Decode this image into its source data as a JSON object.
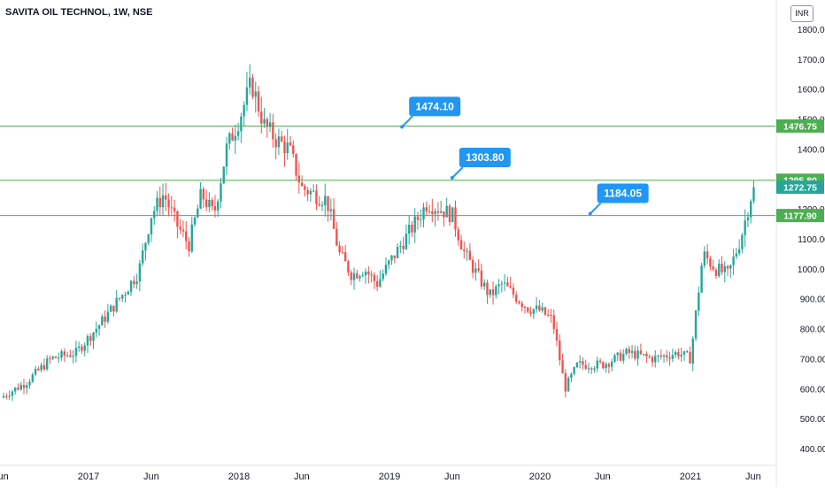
{
  "header": {
    "title": "SAVITA OIL TECHNOL, 1W, NSE",
    "currency": "INR"
  },
  "chart_data": {
    "type": "candlestick",
    "title": "SAVITA OIL TECHNOL, 1W, NSE",
    "y_axis": {
      "position": "right",
      "min": 350,
      "max": 1825,
      "ticks": [
        400,
        500,
        600,
        700,
        800,
        900,
        1000,
        1100,
        1200,
        1300,
        1400,
        1500,
        1600,
        1700,
        1800
      ],
      "tick_labels": [
        "400.00",
        "500.00",
        "600.00",
        "700.00",
        "800.00",
        "900.00",
        "1000.00",
        "1100.00",
        "1200.00",
        "1300.00",
        "1400.00",
        "1500.00",
        "1600.00",
        "1700.00",
        "1800.00"
      ]
    },
    "x_axis": {
      "start": "2016-06",
      "end": "2021-07",
      "ticks": [
        {
          "label": "Jun",
          "date": "2016-06"
        },
        {
          "label": "2017",
          "date": "2017-01"
        },
        {
          "label": "Jun",
          "date": "2017-06"
        },
        {
          "label": "2018",
          "date": "2018-01"
        },
        {
          "label": "Jun",
          "date": "2018-06"
        },
        {
          "label": "2019",
          "date": "2019-01"
        },
        {
          "label": "Jun",
          "date": "2019-06"
        },
        {
          "label": "2020",
          "date": "2020-01"
        },
        {
          "label": "Jun",
          "date": "2020-06"
        },
        {
          "label": "2021",
          "date": "2021-01"
        },
        {
          "label": "Jun",
          "date": "2021-06"
        }
      ]
    },
    "price_path": [
      [
        "2016-06",
        570
      ],
      [
        "2016-08",
        620
      ],
      [
        "2016-10",
        700
      ],
      [
        "2016-12",
        720
      ],
      [
        "2017-02",
        820
      ],
      [
        "2017-04",
        930
      ],
      [
        "2017-05",
        990
      ],
      [
        "2017-06",
        1180
      ],
      [
        "2017-07",
        1250
      ],
      [
        "2017-08",
        1150
      ],
      [
        "2017-09",
        1080
      ],
      [
        "2017-10",
        1250
      ],
      [
        "2017-11",
        1180
      ],
      [
        "2017-12",
        1400
      ],
      [
        "2018-01",
        1500
      ],
      [
        "2018-02",
        1620
      ],
      [
        "2018-03",
        1480
      ],
      [
        "2018-04",
        1430
      ],
      [
        "2018-05",
        1400
      ],
      [
        "2018-06",
        1270
      ],
      [
        "2018-07",
        1250
      ],
      [
        "2018-08",
        1230
      ],
      [
        "2018-09",
        1050
      ],
      [
        "2018-10",
        980
      ],
      [
        "2018-11",
        1000
      ],
      [
        "2018-12",
        950
      ],
      [
        "2019-01",
        1020
      ],
      [
        "2019-03",
        1150
      ],
      [
        "2019-04",
        1220
      ],
      [
        "2019-05",
        1200
      ],
      [
        "2019-06",
        1180
      ],
      [
        "2019-07",
        1050
      ],
      [
        "2019-09",
        910
      ],
      [
        "2019-10",
        950
      ],
      [
        "2019-12",
        870
      ],
      [
        "2020-01",
        860
      ],
      [
        "2020-02",
        830
      ],
      [
        "2020-03",
        600
      ],
      [
        "2020-04",
        680
      ],
      [
        "2020-06",
        680
      ],
      [
        "2020-08",
        720
      ],
      [
        "2020-10",
        700
      ],
      [
        "2020-12",
        720
      ],
      [
        "2021-01",
        700
      ],
      [
        "2021-02",
        1050
      ],
      [
        "2021-03",
        1000
      ],
      [
        "2021-04",
        980
      ],
      [
        "2021-05",
        1100
      ],
      [
        "2021-06",
        1272.75
      ]
    ],
    "horizontal_lines": [
      {
        "value": 1476.75,
        "label": "1476.75",
        "color": "#4caf50"
      },
      {
        "value": 1295.8,
        "label": "1295.80",
        "color": "#4caf50"
      },
      {
        "value": 1177.9,
        "label": "1177.90",
        "color": "#4caf50"
      }
    ],
    "last_price": {
      "value": 1272.75,
      "label": "1272.75",
      "color": "#26a69a"
    },
    "annotations": [
      {
        "text": "1474.10",
        "date": "2019-02",
        "value": 1474.1
      },
      {
        "text": "1303.80",
        "date": "2019-06",
        "value": 1303.8
      },
      {
        "text": "1184.05",
        "date": "2020-05",
        "value": 1184.05
      }
    ],
    "colors": {
      "up": "#26a69a",
      "down": "#ef5350",
      "level_line": "#4caf50",
      "callout": "#2196f3",
      "axis_text": "#131722"
    }
  }
}
